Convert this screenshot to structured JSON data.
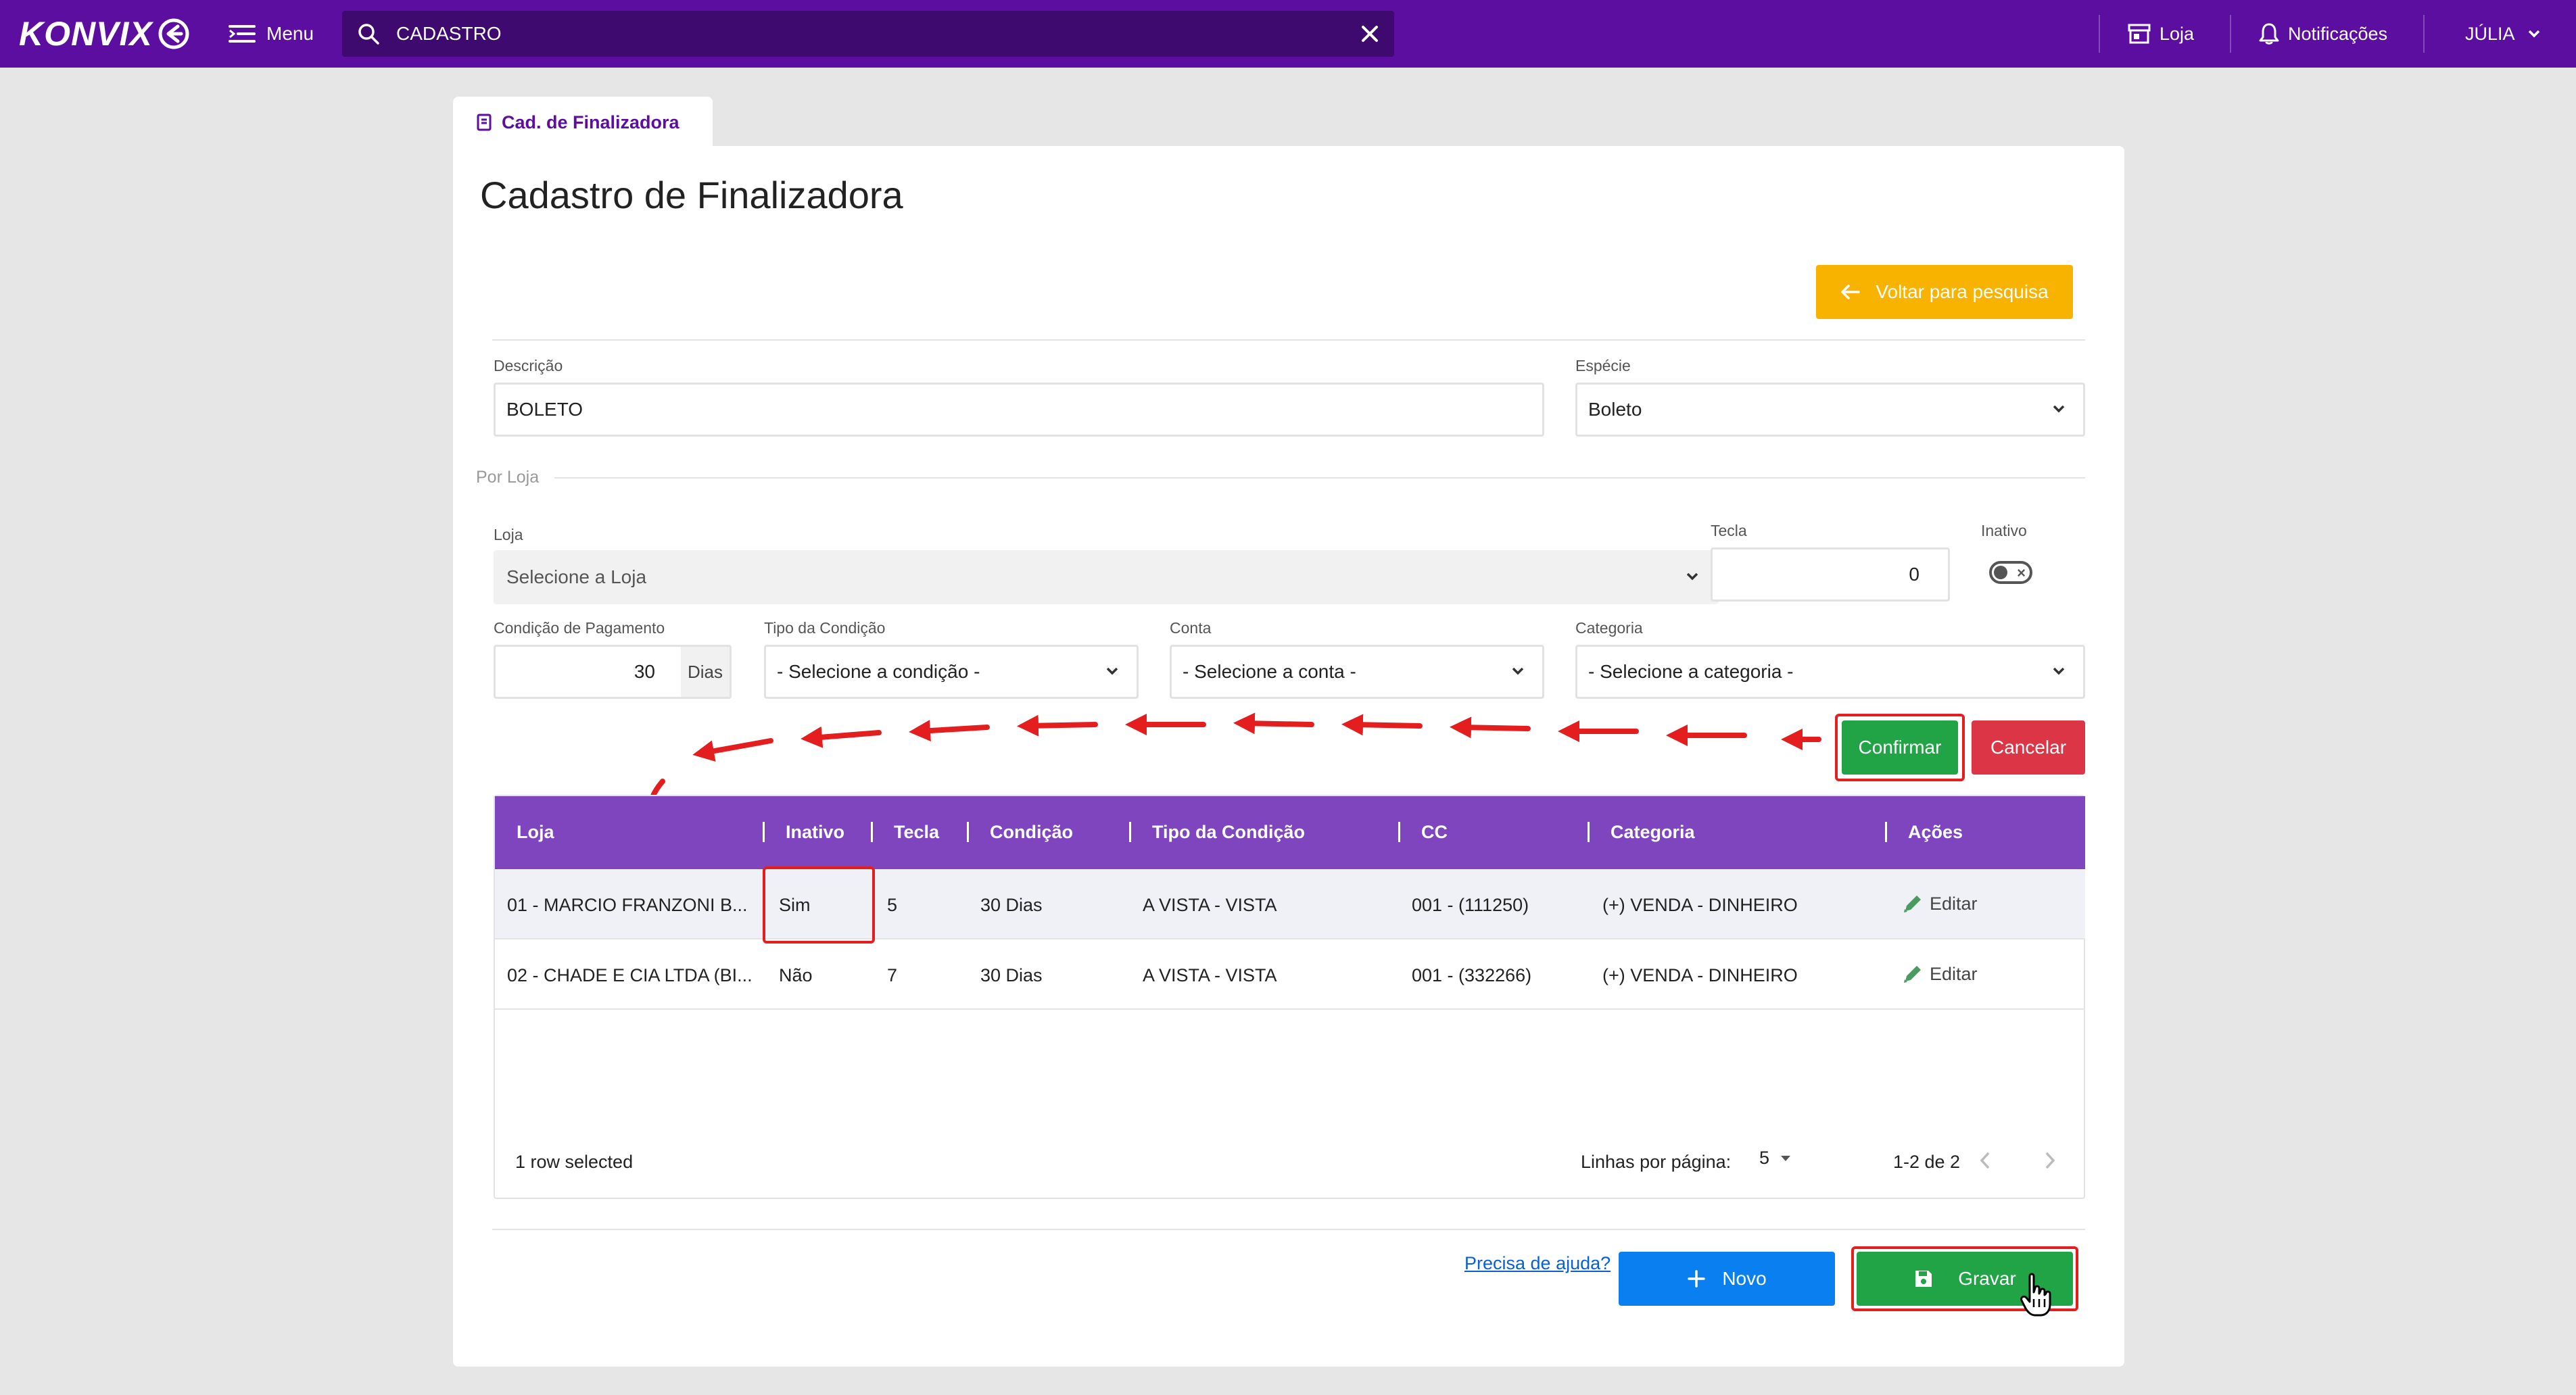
{
  "app": {
    "brand": "KONVIX"
  },
  "topbar": {
    "menu_label": "Menu",
    "search_value": "CADASTRO",
    "store_label": "Loja",
    "notifications_label": "Notificações",
    "user_label": "JÚLIA"
  },
  "tab": {
    "label": "Cad. de Finalizadora"
  },
  "page": {
    "title": "Cadastro de Finalizadora"
  },
  "actions": {
    "back_label": "Voltar para pesquisa"
  },
  "form": {
    "descricao_label": "Descrição",
    "descricao_value": "BOLETO",
    "especie_label": "Espécie",
    "especie_value": "Boleto",
    "por_loja_label": "Por Loja",
    "loja_label": "Loja",
    "loja_placeholder": "Selecione a Loja",
    "tecla_label": "Tecla",
    "tecla_value": "0",
    "inativo_label": "Inativo",
    "condicao_label": "Condição de Pagamento",
    "condicao_value": "30",
    "condicao_addon": "Dias",
    "tipo_label": "Tipo da Condição",
    "tipo_placeholder": "- Selecione a condição -",
    "conta_label": "Conta",
    "conta_placeholder": "- Selecione a conta -",
    "categoria_label": "Categoria",
    "categoria_placeholder": "- Selecione a categoria -",
    "confirm_label": "Confirmar",
    "cancel_label": "Cancelar"
  },
  "table": {
    "columns": [
      "Loja",
      "Inativo",
      "Tecla",
      "Condição",
      "Tipo da Condição",
      "CC",
      "Categoria",
      "Ações"
    ],
    "rows": [
      {
        "loja": "01 - MARCIO FRANZONI B...",
        "inativo": "Sim",
        "tecla": "5",
        "condicao": "30 Dias",
        "tipo": "A VISTA - VISTA",
        "cc": "001 - (111250)",
        "categoria": "(+) VENDA - DINHEIRO",
        "acao": "Editar"
      },
      {
        "loja": "02 - CHADE E CIA LTDA (BI...",
        "inativo": "Não",
        "tecla": "7",
        "condicao": "30 Dias",
        "tipo": "A VISTA - VISTA",
        "cc": "001 - (332266)",
        "categoria": "(+) VENDA - DINHEIRO",
        "acao": "Editar"
      }
    ],
    "selected_text": "1 row selected",
    "rows_per_page_label": "Linhas por página:",
    "rows_per_page_value": "5",
    "range_text": "1-2 de 2"
  },
  "footer": {
    "help_label": "Precisa de ajuda?",
    "new_label": "Novo",
    "save_label": "Gravar"
  },
  "colors": {
    "topbar": "#5c0ea1",
    "table_header": "#7e45be",
    "confirm": "#21a446",
    "cancel": "#dc3545",
    "back": "#f8b200",
    "new": "#0a7ff0",
    "annotation": "#e41e1e"
  }
}
